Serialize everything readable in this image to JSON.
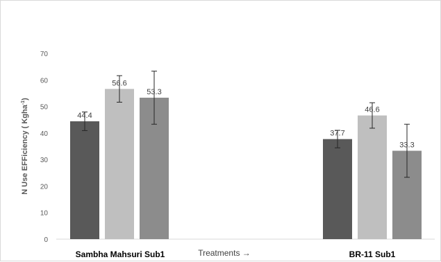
{
  "chart_data": {
    "type": "bar",
    "categories": [
      "Sambha Mahsuri Sub1",
      "BR-11 Sub1"
    ],
    "series": [
      {
        "values": [
          44.4,
          37.7
        ],
        "errors": [
          3.5,
          3.3
        ],
        "color": "#595959"
      },
      {
        "values": [
          56.6,
          46.6
        ],
        "errors": [
          5.0,
          4.8
        ],
        "color": "#bfbfbf"
      },
      {
        "values": [
          53.3,
          33.3
        ],
        "errors": [
          10.0,
          10.0
        ],
        "color": "#8c8c8c"
      }
    ],
    "data_labels": [
      [
        "44.4",
        "37.7"
      ],
      [
        "56.6",
        "46.6"
      ],
      [
        "53.3",
        "33.3"
      ]
    ],
    "ylabel_main": "N Use EFFiciency ( Kgha",
    "ylabel_sup": "-1",
    "ylabel_end": ")",
    "x_note": "Treatments →",
    "ylim": [
      0,
      70
    ],
    "yticks": [
      0,
      10,
      20,
      30,
      40,
      50,
      60,
      70
    ],
    "grid": false,
    "legend": "none"
  }
}
